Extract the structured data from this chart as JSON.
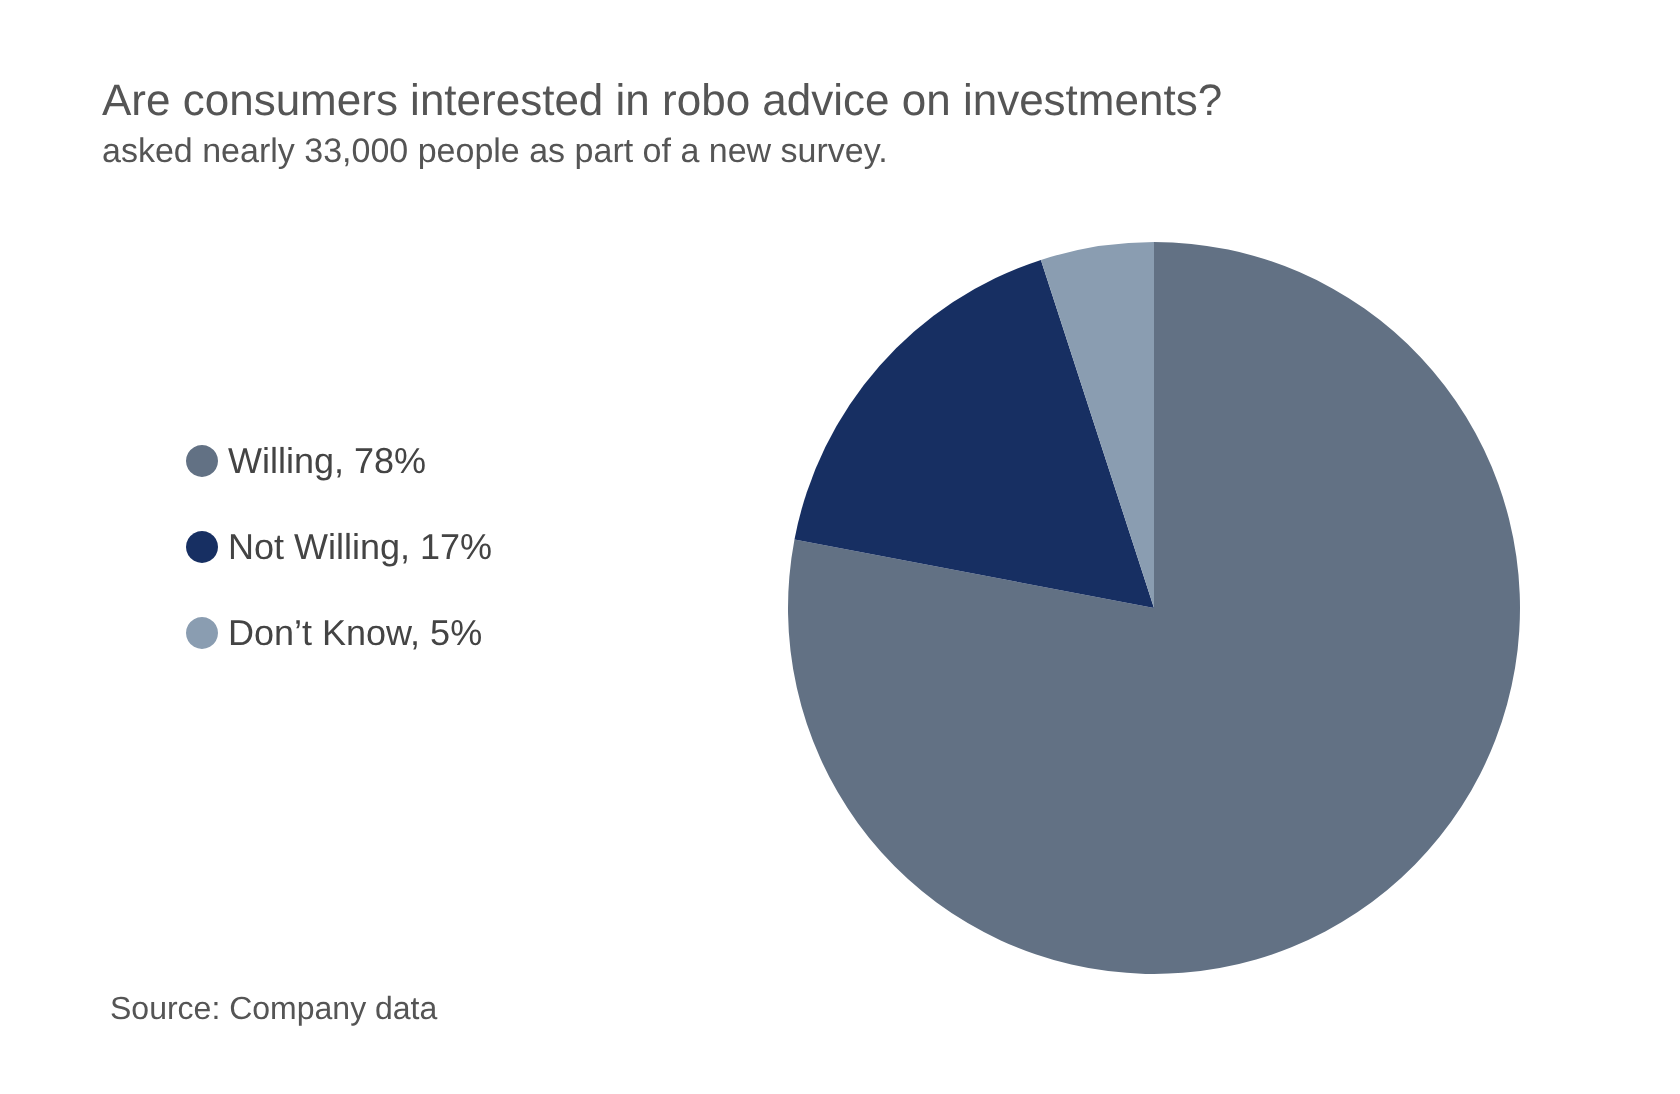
{
  "chart_data": {
    "type": "pie",
    "title": "Are consumers interested in robo advice on investments?",
    "subtitle": "asked nearly 33,000 people as part of a new survey.",
    "categories": [
      "Willing",
      "Not Willing",
      "Don’t Know"
    ],
    "values": [
      78,
      17,
      5
    ],
    "value_labels": [
      "78%",
      "17%",
      "5%"
    ],
    "colors": [
      "#627184",
      "#172f62",
      "#8a9db1"
    ],
    "legend": "left",
    "annotations": [
      "Source: Company data"
    ]
  }
}
